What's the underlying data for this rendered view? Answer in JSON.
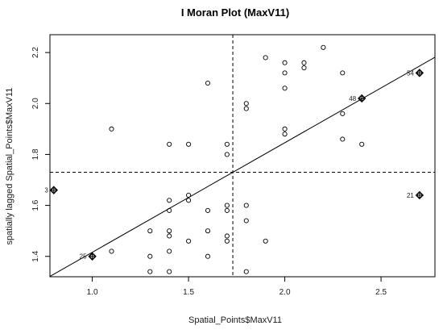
{
  "chart_data": {
    "type": "scatter",
    "title": "I Moran Plot (MaxV11)",
    "xlabel": "Spatial_Points$MaxV11",
    "ylabel": "spatially lagged Spatial_Points$MaxV11",
    "xlim": [
      0.78,
      2.78
    ],
    "ylim": [
      1.32,
      2.27
    ],
    "xticks": [
      1.0,
      1.5,
      2.0,
      2.5
    ],
    "yticks": [
      1.4,
      1.6,
      1.8,
      2.0,
      2.2
    ],
    "xtick_labels": [
      "1.0",
      "1.5",
      "2.0",
      "2.5"
    ],
    "ytick_labels": [
      "1.4",
      "1.6",
      "1.8",
      "2.0",
      "2.2"
    ],
    "mean_x": 1.73,
    "mean_y": 1.73,
    "regression": {
      "slope": 0.43,
      "intercept": 0.986
    },
    "points": [
      [
        1.1,
        1.9
      ],
      [
        1.1,
        1.42
      ],
      [
        1.3,
        1.5
      ],
      [
        1.3,
        1.4
      ],
      [
        1.3,
        1.34
      ],
      [
        1.4,
        1.84
      ],
      [
        1.4,
        1.62
      ],
      [
        1.4,
        1.58
      ],
      [
        1.4,
        1.5
      ],
      [
        1.4,
        1.48
      ],
      [
        1.4,
        1.42
      ],
      [
        1.4,
        1.34
      ],
      [
        1.5,
        1.84
      ],
      [
        1.5,
        1.64
      ],
      [
        1.5,
        1.62
      ],
      [
        1.5,
        1.46
      ],
      [
        1.6,
        2.08
      ],
      [
        1.6,
        1.58
      ],
      [
        1.6,
        1.5
      ],
      [
        1.6,
        1.4
      ],
      [
        1.7,
        1.84
      ],
      [
        1.7,
        1.8
      ],
      [
        1.7,
        1.6
      ],
      [
        1.7,
        1.58
      ],
      [
        1.7,
        1.48
      ],
      [
        1.7,
        1.46
      ],
      [
        1.8,
        2.0
      ],
      [
        1.8,
        1.98
      ],
      [
        1.8,
        1.6
      ],
      [
        1.8,
        1.54
      ],
      [
        1.8,
        1.34
      ],
      [
        1.9,
        2.18
      ],
      [
        1.9,
        1.46
      ],
      [
        2.0,
        2.16
      ],
      [
        2.0,
        2.12
      ],
      [
        2.0,
        2.06
      ],
      [
        2.0,
        1.9
      ],
      [
        2.0,
        1.88
      ],
      [
        2.1,
        2.16
      ],
      [
        2.1,
        2.14
      ],
      [
        2.2,
        2.22
      ],
      [
        2.3,
        2.12
      ],
      [
        2.3,
        1.96
      ],
      [
        2.3,
        1.86
      ],
      [
        2.4,
        1.84
      ]
    ],
    "influential": [
      {
        "label": "3",
        "x": 0.8,
        "y": 1.66
      },
      {
        "label": "25",
        "x": 1.0,
        "y": 1.4
      },
      {
        "label": "48",
        "x": 2.4,
        "y": 2.02
      },
      {
        "label": "54",
        "x": 2.7,
        "y": 2.12
      },
      {
        "label": "21",
        "x": 2.7,
        "y": 1.64
      }
    ]
  }
}
